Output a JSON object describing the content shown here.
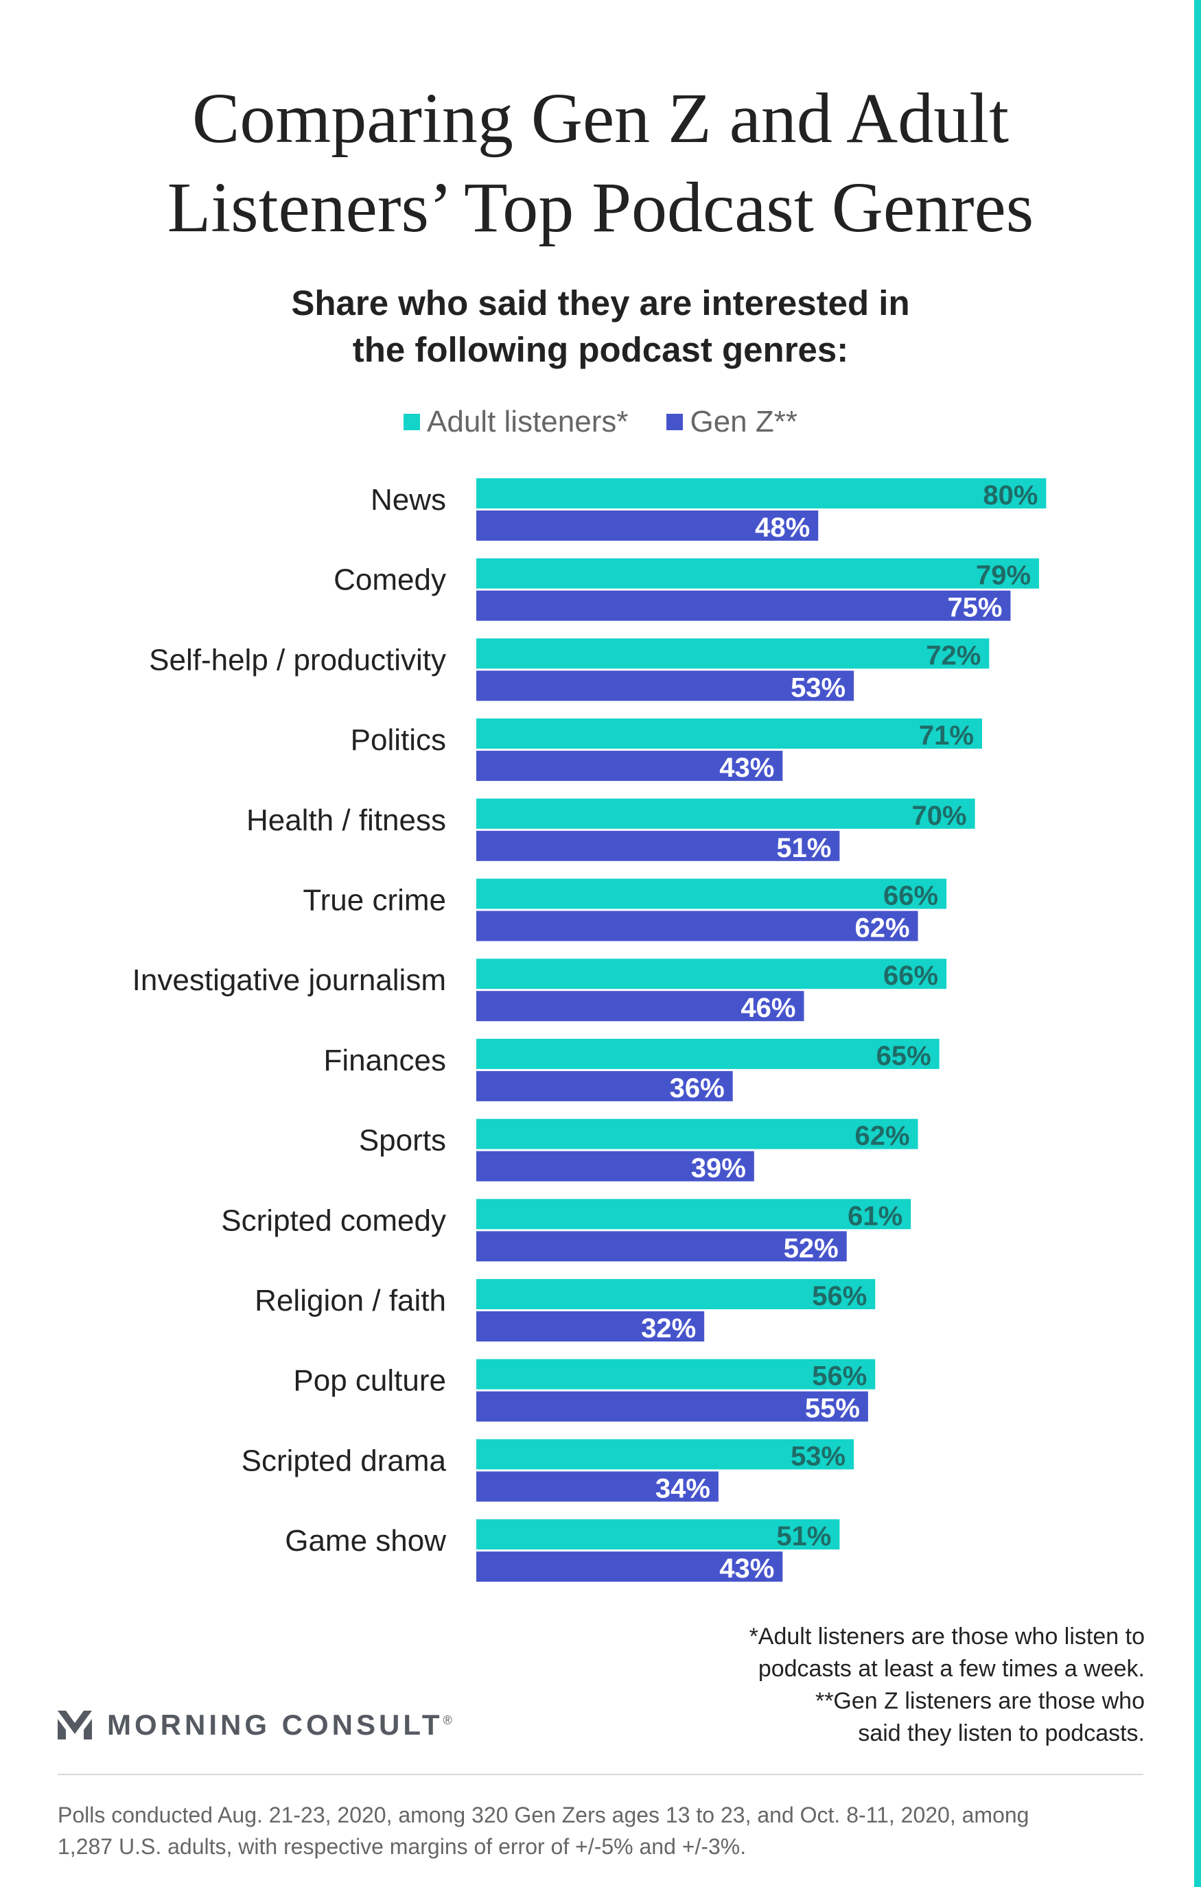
{
  "title": {
    "line1": "Comparing Gen Z and Adult",
    "line2": "Listeners’ Top Podcast Genres"
  },
  "subtitle": {
    "line1": "Share who said they are interested in",
    "line2": "the following podcast genres:"
  },
  "colors": {
    "adult": "#14d3c8",
    "genz": "#4654cc",
    "adult_label": "#1f6b67",
    "genz_label": "#ffffff",
    "accent_stripe": "#14d3c8"
  },
  "chart_data": {
    "type": "bar",
    "orientation": "horizontal",
    "categories": [
      "News",
      "Comedy",
      "Self-help / productivity",
      "Politics",
      "Health / fitness",
      "True crime",
      "Investigative journalism",
      "Finances",
      "Sports",
      "Scripted comedy",
      "Religion / faith",
      "Pop culture",
      "Scripted drama",
      "Game show"
    ],
    "series": [
      {
        "name": "Adult listeners*",
        "values": [
          80,
          79,
          72,
          71,
          70,
          66,
          66,
          65,
          62,
          61,
          56,
          56,
          53,
          51
        ]
      },
      {
        "name": "Gen Z**",
        "values": [
          48,
          75,
          53,
          43,
          51,
          62,
          46,
          36,
          39,
          52,
          32,
          55,
          34,
          43
        ]
      }
    ],
    "value_suffix": "%",
    "xlim": [
      0,
      100
    ],
    "grid": false,
    "legend": "top-center"
  },
  "footnote": {
    "line1": "*Adult listeners are those who listen to",
    "line2": "podcasts at least a few times a week.",
    "line3": "**Gen Z listeners are those who",
    "line4": "said they listen to podcasts."
  },
  "brand": {
    "name": "MORNING CONSULT",
    "mark": "®",
    "logo_icon": "morning-consult-chevron-icon"
  },
  "source": {
    "line1": "Polls conducted Aug. 21-23, 2020, among 320 Gen Zers ages 13 to 23, and Oct. 8-11, 2020, among",
    "line2": "1,287 U.S. adults, with respective margins of error of +/-5% and +/-3%."
  }
}
